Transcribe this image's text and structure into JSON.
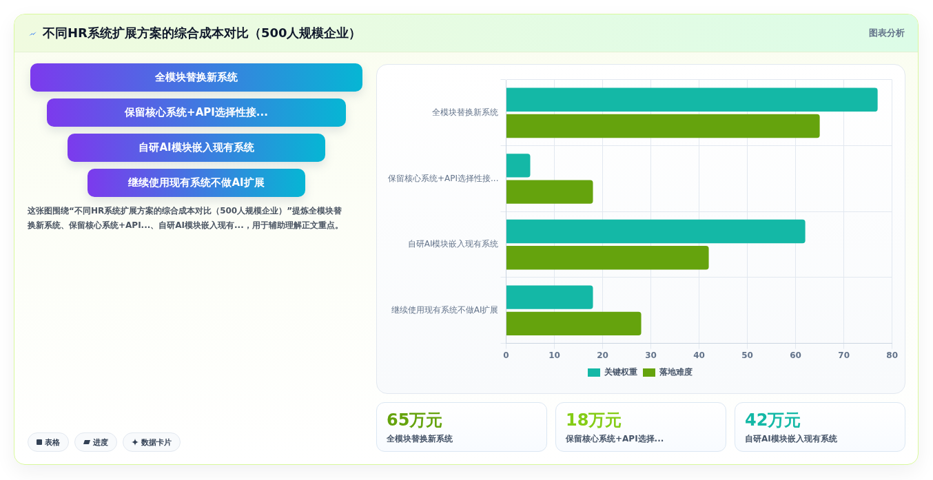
{
  "chart_data": [
    {
      "type": "other",
      "title": "不同HR系统扩展方案的综合成本对比（500人规模企业）",
      "annotations": [
        "图表分析"
      ]
    },
    {
      "type": "other",
      "categories": [
        "全模块替换新系统",
        "保留核心系统+API选择性接...",
        "自研AI模块嵌入现有系统",
        "继续使用现有系统不做AI扩展"
      ],
      "annotations": [
        "这张图围绕“不同HR系统扩展方案的综合成本对比（500人规模企业）”提炼全模块替换新系统、保留核心系统+API...、自研AI模块嵌入现有...，用于辅助理解正文重点。",
        "表格",
        "进度",
        "数据卡片"
      ]
    },
    {
      "type": "bar",
      "orientation": "horizontal",
      "categories": [
        "全模块替换新系统",
        "保留核心系统+API选择性接...",
        "自研AI模块嵌入现有系统",
        "继续使用现有系统不做AI扩展"
      ],
      "series": [
        {
          "name": "关键权重",
          "color": "#14b8a6",
          "values": [
            77,
            5,
            62,
            18
          ]
        },
        {
          "name": "落地难度",
          "color": "#65a30d",
          "values": [
            65,
            18,
            42,
            28
          ]
        }
      ],
      "xlim": [
        0,
        80
      ],
      "xticks": [
        0,
        10,
        20,
        30,
        40,
        50,
        60,
        70,
        80
      ],
      "grid": true,
      "legend": "bottom"
    },
    {
      "type": "other",
      "categories": [
        "全模块替换新系统",
        "保留核心系统+API选择...",
        "自研AI模块嵌入现有系统"
      ],
      "value_labels": [
        "65万元",
        "18万元",
        "42万元"
      ]
    }
  ]
}
